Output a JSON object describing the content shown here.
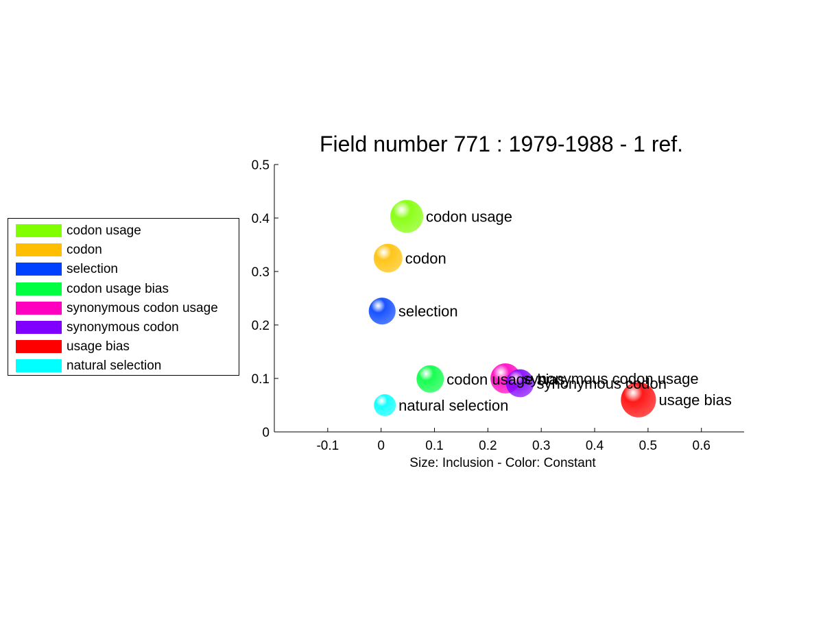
{
  "chart_data": {
    "type": "scatter",
    "title": "Field number 771 : 1979-1988  - 1 ref.",
    "xlabel": "Size: Inclusion - Color: Constant",
    "ylabel": "",
    "xlim": [
      -0.2,
      0.68
    ],
    "ylim": [
      0,
      0.5
    ],
    "xticks": [
      -0.1,
      0,
      0.1,
      0.2,
      0.3,
      0.4,
      0.5,
      0.6
    ],
    "xtick_labels": [
      "-0.1",
      "0",
      "0.1",
      "0.2",
      "0.3",
      "0.4",
      "0.5",
      "0.6"
    ],
    "yticks": [
      0,
      0.1,
      0.2,
      0.3,
      0.4,
      0.5
    ],
    "ytick_labels": [
      "0",
      "0.1",
      "0.2",
      "0.3",
      "0.4",
      "0.5"
    ],
    "grid": false,
    "legend_position": "left",
    "points": [
      {
        "label": "codon usage",
        "x": 0.048,
        "y": 0.403,
        "size": 0.8,
        "color": "#80ff00"
      },
      {
        "label": "codon",
        "x": 0.013,
        "y": 0.325,
        "size": 0.65,
        "color": "#ffbf00"
      },
      {
        "label": "selection",
        "x": 0.002,
        "y": 0.226,
        "size": 0.58,
        "color": "#0040ff"
      },
      {
        "label": "codon usage bias",
        "x": 0.092,
        "y": 0.099,
        "size": 0.6,
        "color": "#00ff40"
      },
      {
        "label": "synonymous codon usage",
        "x": 0.233,
        "y": 0.1,
        "size": 0.7,
        "color": "#ff00bf"
      },
      {
        "label": "synonymous codon",
        "x": 0.26,
        "y": 0.091,
        "size": 0.62,
        "color": "#8000ff"
      },
      {
        "label": "usage bias",
        "x": 0.482,
        "y": 0.06,
        "size": 0.88,
        "color": "#ff0000"
      },
      {
        "label": "natural selection",
        "x": 0.007,
        "y": 0.05,
        "size": 0.4,
        "color": "#00ffff"
      }
    ]
  },
  "legend": {
    "items": [
      {
        "label": "codon usage",
        "color": "#80ff00"
      },
      {
        "label": "codon",
        "color": "#ffbf00"
      },
      {
        "label": "selection",
        "color": "#0040ff"
      },
      {
        "label": "codon usage bias",
        "color": "#00ff40"
      },
      {
        "label": "synonymous codon usage",
        "color": "#ff00bf"
      },
      {
        "label": "synonymous codon",
        "color": "#8000ff"
      },
      {
        "label": "usage bias",
        "color": "#ff0000"
      },
      {
        "label": "natural selection",
        "color": "#00ffff"
      }
    ]
  }
}
